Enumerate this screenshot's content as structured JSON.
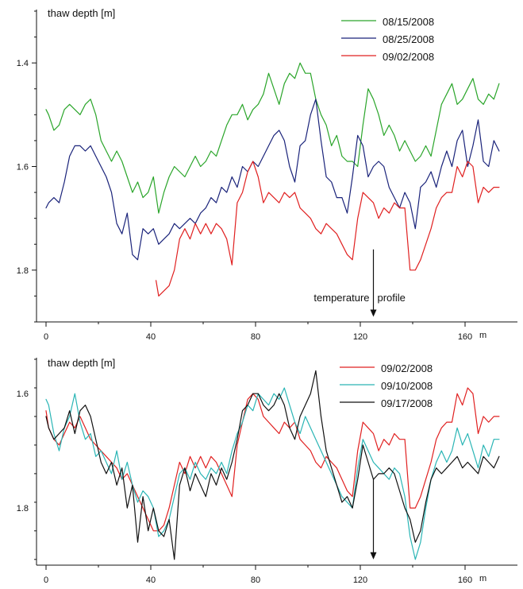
{
  "chart_data": [
    {
      "type": "line",
      "ylabel": "thaw depth [m]",
      "xunit": "m",
      "y_inverted": true,
      "xlim": [
        -2,
        175
      ],
      "ylim": [
        1.3,
        1.9
      ],
      "xticks": [
        0,
        40,
        80,
        120,
        160
      ],
      "yticks": [
        1.4,
        1.6,
        1.8
      ],
      "yticklabels": [
        "1.4",
        "1.6",
        "1.8"
      ],
      "grid": false,
      "legend_position": "top-right",
      "annotation": {
        "text": "temperature profile",
        "x": 125,
        "arrow_from_y": 1.76,
        "arrow_to_y": 1.89
      },
      "series": [
        {
          "name": "08/15/2008",
          "color": "#2aa52a",
          "x": [
            0,
            1,
            3,
            5,
            7,
            9,
            11,
            13,
            15,
            17,
            19,
            21,
            23,
            25,
            27,
            29,
            31,
            33,
            35,
            37,
            39,
            41,
            43,
            45,
            47,
            49,
            51,
            53,
            55,
            57,
            59,
            61,
            63,
            65,
            67,
            69,
            71,
            73,
            75,
            77,
            79,
            81,
            83,
            85,
            87,
            89,
            91,
            93,
            95,
            97,
            99,
            101,
            103,
            105,
            107,
            109,
            111,
            113,
            115,
            117,
            119,
            121,
            123,
            125,
            127,
            129,
            131,
            133,
            135,
            137,
            139,
            141,
            143,
            145,
            147,
            149,
            151,
            153,
            155,
            157,
            159,
            161,
            163,
            165,
            167,
            169,
            171,
            173
          ],
          "y": [
            1.49,
            1.5,
            1.53,
            1.52,
            1.49,
            1.48,
            1.49,
            1.5,
            1.48,
            1.47,
            1.5,
            1.55,
            1.57,
            1.59,
            1.57,
            1.59,
            1.62,
            1.65,
            1.63,
            1.66,
            1.65,
            1.62,
            1.69,
            1.65,
            1.62,
            1.6,
            1.61,
            1.62,
            1.6,
            1.58,
            1.6,
            1.59,
            1.57,
            1.58,
            1.55,
            1.52,
            1.5,
            1.5,
            1.48,
            1.51,
            1.49,
            1.48,
            1.46,
            1.42,
            1.45,
            1.48,
            1.44,
            1.42,
            1.43,
            1.4,
            1.42,
            1.42,
            1.47,
            1.5,
            1.52,
            1.56,
            1.54,
            1.58,
            1.59,
            1.59,
            1.6,
            1.52,
            1.45,
            1.47,
            1.5,
            1.54,
            1.52,
            1.54,
            1.57,
            1.55,
            1.57,
            1.59,
            1.58,
            1.56,
            1.58,
            1.53,
            1.48,
            1.46,
            1.44,
            1.48,
            1.47,
            1.45,
            1.43,
            1.47,
            1.48,
            1.46,
            1.47,
            1.44
          ]
        },
        {
          "name": "08/25/2008",
          "color": "#1a237a",
          "x": [
            0,
            1,
            3,
            5,
            7,
            9,
            11,
            13,
            15,
            17,
            19,
            21,
            23,
            25,
            27,
            29,
            31,
            33,
            35,
            37,
            39,
            41,
            43,
            45,
            47,
            49,
            51,
            53,
            55,
            57,
            59,
            61,
            63,
            65,
            67,
            69,
            71,
            73,
            75,
            77,
            79,
            81,
            83,
            85,
            87,
            89,
            91,
            93,
            95,
            97,
            99,
            101,
            103,
            105,
            107,
            109,
            111,
            113,
            115,
            117,
            119,
            121,
            123,
            125,
            127,
            129,
            131,
            133,
            135,
            137,
            139,
            141,
            143,
            145,
            147,
            149,
            151,
            153,
            155,
            157,
            159,
            161,
            163,
            165,
            167,
            169,
            171,
            173
          ],
          "y": [
            1.68,
            1.67,
            1.66,
            1.67,
            1.63,
            1.58,
            1.56,
            1.56,
            1.57,
            1.56,
            1.58,
            1.6,
            1.62,
            1.65,
            1.71,
            1.73,
            1.69,
            1.77,
            1.78,
            1.72,
            1.73,
            1.72,
            1.75,
            1.74,
            1.73,
            1.71,
            1.72,
            1.71,
            1.7,
            1.71,
            1.69,
            1.68,
            1.66,
            1.67,
            1.64,
            1.65,
            1.62,
            1.64,
            1.6,
            1.61,
            1.59,
            1.6,
            1.58,
            1.56,
            1.54,
            1.53,
            1.55,
            1.6,
            1.63,
            1.56,
            1.55,
            1.5,
            1.47,
            1.55,
            1.62,
            1.63,
            1.66,
            1.66,
            1.69,
            1.62,
            1.54,
            1.56,
            1.62,
            1.6,
            1.59,
            1.6,
            1.64,
            1.66,
            1.68,
            1.65,
            1.67,
            1.72,
            1.64,
            1.63,
            1.61,
            1.64,
            1.6,
            1.57,
            1.6,
            1.55,
            1.53,
            1.6,
            1.56,
            1.51,
            1.59,
            1.6,
            1.55,
            1.57
          ]
        },
        {
          "name": "09/02/2008",
          "color": "#e02020",
          "x": [
            42,
            43,
            45,
            47,
            49,
            51,
            53,
            55,
            57,
            59,
            61,
            63,
            65,
            67,
            69,
            71,
            73,
            75,
            77,
            79,
            81,
            83,
            85,
            87,
            89,
            91,
            93,
            95,
            97,
            99,
            101,
            103,
            105,
            107,
            109,
            111,
            113,
            115,
            117,
            119,
            121,
            123,
            125,
            127,
            129,
            131,
            133,
            135,
            137,
            139,
            141,
            143,
            145,
            147,
            149,
            151,
            153,
            155,
            157,
            159,
            161,
            163,
            165,
            167,
            169,
            171,
            173
          ],
          "y": [
            1.82,
            1.85,
            1.84,
            1.83,
            1.8,
            1.74,
            1.72,
            1.74,
            1.71,
            1.73,
            1.71,
            1.73,
            1.71,
            1.72,
            1.74,
            1.79,
            1.67,
            1.65,
            1.61,
            1.59,
            1.62,
            1.67,
            1.65,
            1.66,
            1.67,
            1.65,
            1.66,
            1.65,
            1.68,
            1.69,
            1.7,
            1.72,
            1.73,
            1.71,
            1.72,
            1.73,
            1.75,
            1.77,
            1.78,
            1.7,
            1.65,
            1.66,
            1.67,
            1.7,
            1.68,
            1.69,
            1.67,
            1.68,
            1.68,
            1.8,
            1.8,
            1.78,
            1.75,
            1.72,
            1.68,
            1.66,
            1.65,
            1.65,
            1.6,
            1.62,
            1.59,
            1.6,
            1.67,
            1.64,
            1.65,
            1.64,
            1.64
          ]
        }
      ]
    },
    {
      "type": "line",
      "ylabel": "thaw depth [m]",
      "xunit": "m",
      "y_inverted": true,
      "xlim": [
        -2,
        175
      ],
      "ylim": [
        1.54,
        1.9
      ],
      "xticks": [
        0,
        40,
        80,
        120,
        160
      ],
      "yticks": [
        1.6,
        1.8
      ],
      "yticklabels": [
        "1.6",
        "1.8"
      ],
      "grid": false,
      "legend_position": "top-right",
      "annotation": {
        "text": "",
        "x": 125,
        "arrow_from_y": 1.75,
        "arrow_to_y": 1.89
      },
      "series": [
        {
          "name": "09/02/2008",
          "color": "#e02020",
          "x": [
            0,
            1,
            3,
            5,
            7,
            9,
            11,
            13,
            15,
            17,
            19,
            21,
            23,
            25,
            27,
            29,
            31,
            33,
            35,
            37,
            39,
            41,
            43,
            45,
            47,
            49,
            51,
            53,
            55,
            57,
            59,
            61,
            63,
            65,
            67,
            69,
            71,
            73,
            75,
            77,
            79,
            81,
            83,
            85,
            87,
            89,
            91,
            93,
            95,
            97,
            99,
            101,
            103,
            105,
            107,
            109,
            111,
            113,
            115,
            117,
            119,
            121,
            123,
            125,
            127,
            129,
            131,
            133,
            135,
            137,
            139,
            141,
            143,
            145,
            147,
            149,
            151,
            153,
            155,
            157,
            159,
            161,
            163,
            165,
            167,
            169,
            171,
            173
          ],
          "y": [
            1.63,
            1.66,
            1.68,
            1.69,
            1.67,
            1.65,
            1.66,
            1.64,
            1.66,
            1.68,
            1.69,
            1.7,
            1.71,
            1.72,
            1.73,
            1.75,
            1.74,
            1.76,
            1.78,
            1.8,
            1.82,
            1.84,
            1.84,
            1.83,
            1.8,
            1.76,
            1.72,
            1.74,
            1.71,
            1.73,
            1.71,
            1.73,
            1.71,
            1.72,
            1.74,
            1.76,
            1.78,
            1.69,
            1.65,
            1.61,
            1.6,
            1.61,
            1.64,
            1.65,
            1.66,
            1.67,
            1.65,
            1.66,
            1.65,
            1.68,
            1.69,
            1.7,
            1.72,
            1.73,
            1.71,
            1.72,
            1.73,
            1.75,
            1.77,
            1.78,
            1.7,
            1.65,
            1.66,
            1.67,
            1.7,
            1.68,
            1.69,
            1.67,
            1.68,
            1.68,
            1.8,
            1.8,
            1.78,
            1.75,
            1.72,
            1.68,
            1.66,
            1.65,
            1.65,
            1.6,
            1.62,
            1.59,
            1.6,
            1.67,
            1.64,
            1.65,
            1.64,
            1.64
          ]
        },
        {
          "name": "09/10/2008",
          "color": "#2ab5b5",
          "x": [
            0,
            1,
            3,
            5,
            7,
            9,
            11,
            13,
            15,
            17,
            19,
            21,
            23,
            25,
            27,
            29,
            31,
            33,
            35,
            37,
            39,
            41,
            43,
            45,
            47,
            49,
            51,
            53,
            55,
            57,
            59,
            61,
            63,
            65,
            67,
            69,
            71,
            73,
            75,
            77,
            79,
            81,
            83,
            85,
            87,
            89,
            91,
            93,
            95,
            97,
            99,
            101,
            103,
            105,
            107,
            109,
            111,
            113,
            115,
            117,
            119,
            121,
            123,
            125,
            127,
            129,
            131,
            133,
            135,
            137,
            139,
            141,
            143,
            145,
            147,
            149,
            151,
            153,
            155,
            157,
            159,
            161,
            163,
            165,
            167,
            169,
            171,
            173
          ],
          "y": [
            1.61,
            1.62,
            1.67,
            1.7,
            1.66,
            1.64,
            1.6,
            1.65,
            1.68,
            1.67,
            1.71,
            1.7,
            1.72,
            1.74,
            1.7,
            1.75,
            1.72,
            1.76,
            1.79,
            1.77,
            1.78,
            1.8,
            1.85,
            1.84,
            1.82,
            1.78,
            1.74,
            1.73,
            1.75,
            1.72,
            1.74,
            1.75,
            1.73,
            1.74,
            1.72,
            1.74,
            1.7,
            1.67,
            1.65,
            1.62,
            1.63,
            1.6,
            1.61,
            1.62,
            1.6,
            1.61,
            1.59,
            1.62,
            1.65,
            1.67,
            1.64,
            1.66,
            1.68,
            1.7,
            1.72,
            1.74,
            1.76,
            1.78,
            1.79,
            1.8,
            1.73,
            1.68,
            1.7,
            1.72,
            1.73,
            1.74,
            1.75,
            1.73,
            1.74,
            1.78,
            1.85,
            1.89,
            1.86,
            1.8,
            1.75,
            1.72,
            1.7,
            1.72,
            1.7,
            1.66,
            1.69,
            1.67,
            1.7,
            1.73,
            1.69,
            1.71,
            1.68,
            1.68
          ]
        },
        {
          "name": "09/17/2008",
          "color": "#111111",
          "x": [
            0,
            1,
            3,
            5,
            7,
            9,
            11,
            13,
            15,
            17,
            19,
            21,
            23,
            25,
            27,
            29,
            31,
            33,
            35,
            37,
            39,
            41,
            43,
            45,
            47,
            49,
            51,
            53,
            55,
            57,
            59,
            61,
            63,
            65,
            67,
            69,
            71,
            73,
            75,
            77,
            79,
            81,
            83,
            85,
            87,
            89,
            91,
            93,
            95,
            97,
            99,
            101,
            103,
            105,
            107,
            109,
            111,
            113,
            115,
            117,
            119,
            121,
            123,
            125,
            127,
            129,
            131,
            133,
            135,
            137,
            139,
            141,
            143,
            145,
            147,
            149,
            151,
            153,
            155,
            157,
            159,
            161,
            163,
            165,
            167,
            169,
            171,
            173
          ],
          "y": [
            1.64,
            1.66,
            1.68,
            1.67,
            1.66,
            1.63,
            1.67,
            1.63,
            1.62,
            1.64,
            1.68,
            1.72,
            1.74,
            1.72,
            1.76,
            1.73,
            1.8,
            1.76,
            1.86,
            1.78,
            1.84,
            1.8,
            1.84,
            1.85,
            1.82,
            1.89,
            1.76,
            1.73,
            1.77,
            1.74,
            1.76,
            1.78,
            1.74,
            1.76,
            1.73,
            1.75,
            1.72,
            1.68,
            1.63,
            1.62,
            1.6,
            1.6,
            1.62,
            1.63,
            1.62,
            1.6,
            1.62,
            1.66,
            1.68,
            1.64,
            1.62,
            1.6,
            1.56,
            1.64,
            1.7,
            1.73,
            1.76,
            1.79,
            1.78,
            1.8,
            1.75,
            1.69,
            1.72,
            1.75,
            1.74,
            1.74,
            1.73,
            1.74,
            1.77,
            1.8,
            1.82,
            1.86,
            1.84,
            1.79,
            1.75,
            1.73,
            1.74,
            1.73,
            1.72,
            1.71,
            1.73,
            1.72,
            1.73,
            1.74,
            1.71,
            1.72,
            1.73,
            1.71
          ]
        }
      ]
    }
  ]
}
